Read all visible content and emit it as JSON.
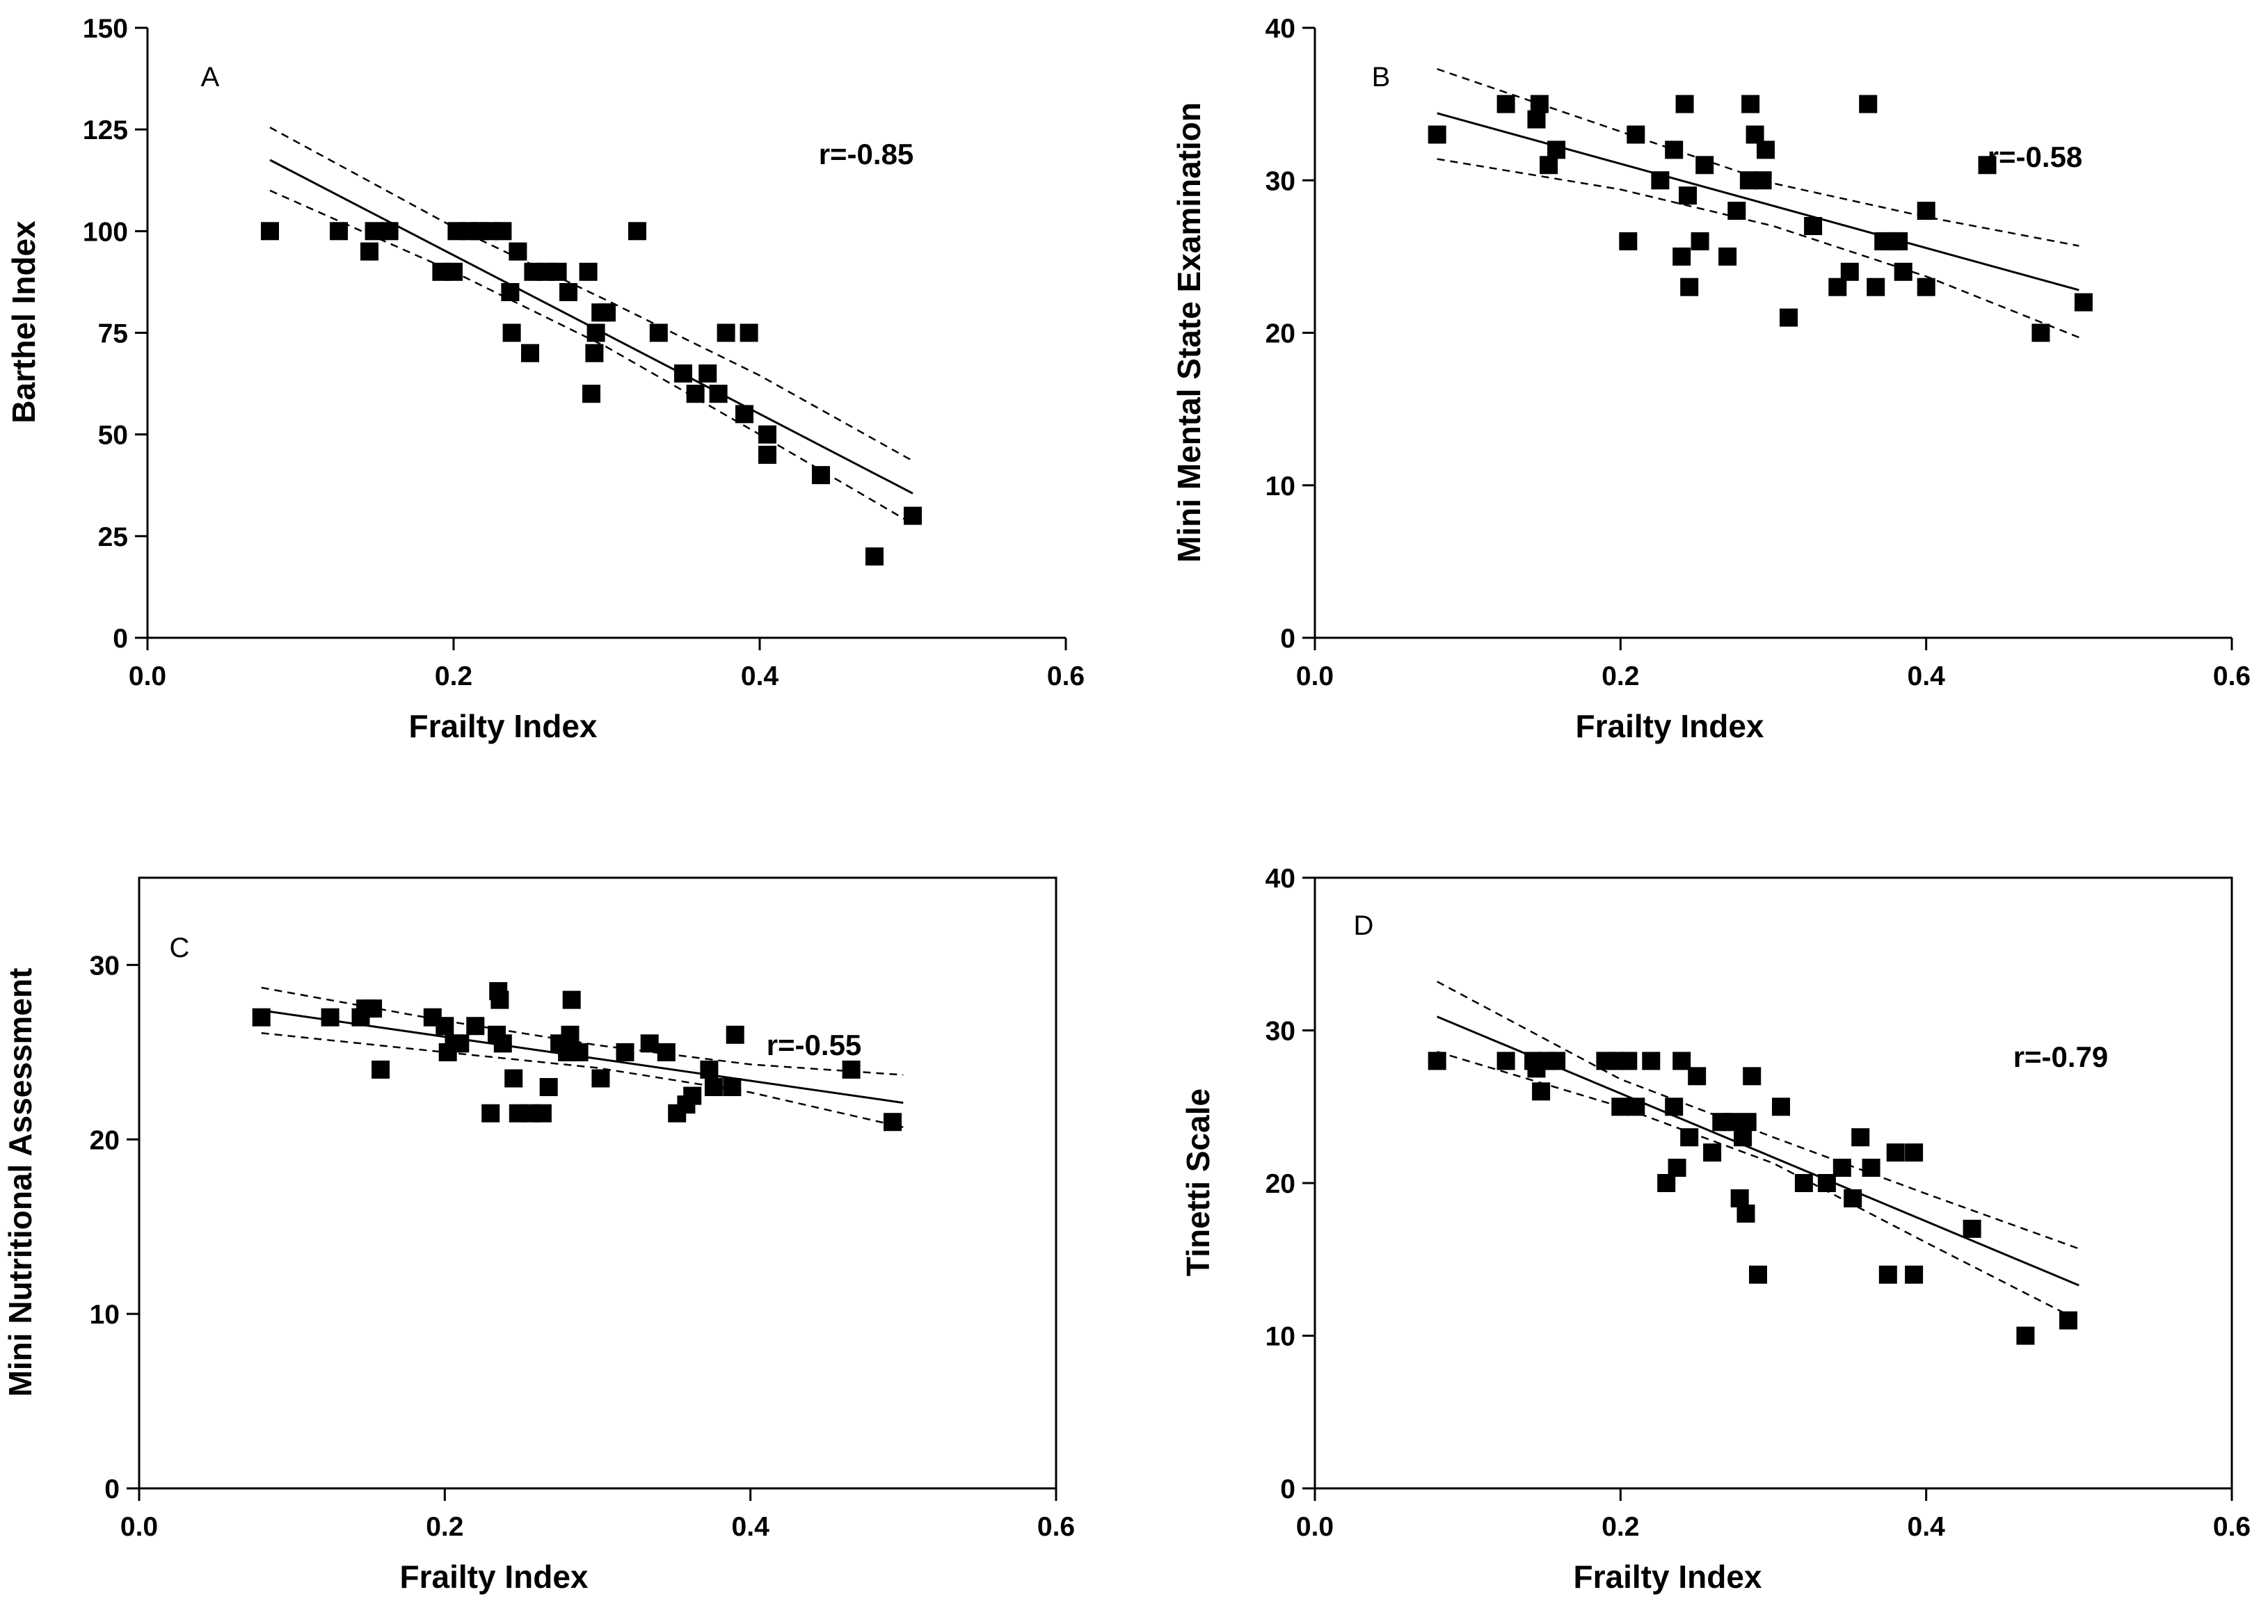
{
  "colors": {
    "ink": "#000000",
    "background": "#ffffff"
  },
  "chart_data": [
    {
      "type": "scatter",
      "panel": "A",
      "correlation_label": "r=-0.85",
      "xlabel": "Frailty Index",
      "ylabel": "Barthel Index",
      "xlim": [
        0,
        0.6
      ],
      "ylim": [
        0,
        150
      ],
      "xticks": [
        "0.0",
        "0.2",
        "0.4",
        "0.6"
      ],
      "yticks": [
        "0",
        "25",
        "50",
        "75",
        "100",
        "125",
        "150"
      ],
      "frame": "axes",
      "points": [
        [
          0.08,
          100
        ],
        [
          0.125,
          100
        ],
        [
          0.145,
          95
        ],
        [
          0.148,
          100
        ],
        [
          0.158,
          100
        ],
        [
          0.192,
          90
        ],
        [
          0.2,
          90
        ],
        [
          0.202,
          100
        ],
        [
          0.21,
          100
        ],
        [
          0.217,
          100
        ],
        [
          0.224,
          100
        ],
        [
          0.232,
          100
        ],
        [
          0.237,
          85
        ],
        [
          0.238,
          75
        ],
        [
          0.242,
          95
        ],
        [
          0.25,
          70
        ],
        [
          0.252,
          90
        ],
        [
          0.26,
          90
        ],
        [
          0.268,
          90
        ],
        [
          0.275,
          85
        ],
        [
          0.288,
          90
        ],
        [
          0.29,
          60
        ],
        [
          0.292,
          70
        ],
        [
          0.293,
          75
        ],
        [
          0.296,
          80
        ],
        [
          0.3,
          80
        ],
        [
          0.32,
          100
        ],
        [
          0.334,
          75
        ],
        [
          0.35,
          65
        ],
        [
          0.358,
          60
        ],
        [
          0.366,
          65
        ],
        [
          0.373,
          60
        ],
        [
          0.378,
          75
        ],
        [
          0.39,
          55
        ],
        [
          0.393,
          75
        ],
        [
          0.405,
          50
        ],
        [
          0.405,
          45
        ],
        [
          0.44,
          40
        ],
        [
          0.475,
          20
        ],
        [
          0.5,
          30
        ]
      ],
      "fit": {
        "x": [
          0.08,
          0.5
        ],
        "y": [
          117.5,
          35.5
        ]
      },
      "ci_upper": {
        "x": [
          0.08,
          0.2,
          0.3,
          0.4,
          0.5
        ],
        "y": [
          125.5,
          101,
          83,
          64.5,
          43.5
        ]
      },
      "ci_lower": {
        "x": [
          0.08,
          0.2,
          0.3,
          0.4,
          0.5
        ],
        "y": [
          110,
          90,
          71.5,
          50,
          28
        ]
      }
    },
    {
      "type": "scatter",
      "panel": "B",
      "correlation_label": "r=-0.58",
      "xlabel": "Frailty Index",
      "ylabel": "Mini Mental State Examination",
      "xlim": [
        0,
        0.6
      ],
      "ylim": [
        0,
        40
      ],
      "xticks": [
        "0.0",
        "0.2",
        "0.4",
        "0.6"
      ],
      "yticks": [
        "0",
        "10",
        "20",
        "30",
        "40"
      ],
      "frame": "axes",
      "points": [
        [
          0.08,
          33
        ],
        [
          0.125,
          35
        ],
        [
          0.145,
          34
        ],
        [
          0.147,
          35
        ],
        [
          0.153,
          31
        ],
        [
          0.158,
          32
        ],
        [
          0.205,
          26
        ],
        [
          0.21,
          33
        ],
        [
          0.226,
          30
        ],
        [
          0.235,
          32
        ],
        [
          0.24,
          25
        ],
        [
          0.242,
          35
        ],
        [
          0.244,
          29
        ],
        [
          0.245,
          23
        ],
        [
          0.252,
          26
        ],
        [
          0.255,
          31
        ],
        [
          0.27,
          25
        ],
        [
          0.276,
          28
        ],
        [
          0.284,
          30
        ],
        [
          0.285,
          35
        ],
        [
          0.288,
          33
        ],
        [
          0.293,
          30
        ],
        [
          0.295,
          32
        ],
        [
          0.31,
          21
        ],
        [
          0.326,
          27
        ],
        [
          0.342,
          23
        ],
        [
          0.35,
          24
        ],
        [
          0.362,
          35
        ],
        [
          0.367,
          23
        ],
        [
          0.372,
          26
        ],
        [
          0.378,
          26
        ],
        [
          0.382,
          26
        ],
        [
          0.385,
          24
        ],
        [
          0.4,
          28
        ],
        [
          0.4,
          23
        ],
        [
          0.44,
          31
        ],
        [
          0.475,
          20
        ],
        [
          0.503,
          22
        ]
      ],
      "fit": {
        "x": [
          0.08,
          0.5
        ],
        "y": [
          34.4,
          22.8
        ]
      },
      "ci_upper": {
        "x": [
          0.08,
          0.2,
          0.3,
          0.4,
          0.5
        ],
        "y": [
          37.3,
          33.2,
          29.8,
          27.6,
          25.7
        ]
      },
      "ci_lower": {
        "x": [
          0.08,
          0.2,
          0.3,
          0.4,
          0.5
        ],
        "y": [
          31.4,
          29.4,
          27.0,
          23.7,
          19.7
        ]
      }
    },
    {
      "type": "scatter",
      "panel": "C",
      "correlation_label": "r=-0.55",
      "xlabel": "Frailty Index",
      "ylabel": "Mini Nutritional Assessment",
      "xlim": [
        0,
        0.6
      ],
      "ylim": [
        0,
        35
      ],
      "xticks": [
        "0.0",
        "0.2",
        "0.4",
        "0.6"
      ],
      "yticks": [
        "0",
        "10",
        "20",
        "30"
      ],
      "frame": "box",
      "points": [
        [
          0.08,
          27
        ],
        [
          0.125,
          27
        ],
        [
          0.145,
          27
        ],
        [
          0.148,
          27.5
        ],
        [
          0.153,
          27.5
        ],
        [
          0.158,
          24
        ],
        [
          0.192,
          27
        ],
        [
          0.2,
          26.5
        ],
        [
          0.202,
          25
        ],
        [
          0.206,
          25.5
        ],
        [
          0.21,
          25.5
        ],
        [
          0.22,
          26.5
        ],
        [
          0.23,
          21.5
        ],
        [
          0.234,
          26
        ],
        [
          0.235,
          28.5
        ],
        [
          0.236,
          28
        ],
        [
          0.238,
          25.5
        ],
        [
          0.245,
          23.5
        ],
        [
          0.248,
          21.5
        ],
        [
          0.256,
          21.5
        ],
        [
          0.264,
          21.5
        ],
        [
          0.268,
          23
        ],
        [
          0.275,
          25.5
        ],
        [
          0.28,
          25
        ],
        [
          0.282,
          26
        ],
        [
          0.283,
          28
        ],
        [
          0.288,
          25
        ],
        [
          0.302,
          23.5
        ],
        [
          0.318,
          25
        ],
        [
          0.334,
          25.5
        ],
        [
          0.345,
          25
        ],
        [
          0.352,
          21.5
        ],
        [
          0.358,
          22
        ],
        [
          0.362,
          22.5
        ],
        [
          0.373,
          24
        ],
        [
          0.376,
          23
        ],
        [
          0.388,
          23
        ],
        [
          0.39,
          26
        ],
        [
          0.466,
          24
        ],
        [
          0.493,
          21
        ]
      ],
      "fit": {
        "x": [
          0.08,
          0.5
        ],
        "y": [
          27.4,
          22.1
        ]
      },
      "ci_upper": {
        "x": [
          0.08,
          0.2,
          0.3,
          0.4,
          0.5
        ],
        "y": [
          28.7,
          26.8,
          25.4,
          24.3,
          23.7
        ]
      },
      "ci_lower": {
        "x": [
          0.08,
          0.2,
          0.3,
          0.4,
          0.5
        ],
        "y": [
          26.1,
          25.0,
          24.1,
          22.7,
          20.7
        ]
      }
    },
    {
      "type": "scatter",
      "panel": "D",
      "correlation_label": "r=-0.79",
      "xlabel": "Frailty Index",
      "ylabel": "Tinetti Scale",
      "xlim": [
        0,
        0.6
      ],
      "ylim": [
        0,
        40
      ],
      "xticks": [
        "0.0",
        "0.2",
        "0.4",
        "0.6"
      ],
      "yticks": [
        "0",
        "10",
        "20",
        "30",
        "40"
      ],
      "frame": "box",
      "points": [
        [
          0.08,
          28
        ],
        [
          0.125,
          28
        ],
        [
          0.143,
          28
        ],
        [
          0.145,
          27.5
        ],
        [
          0.148,
          26
        ],
        [
          0.152,
          28
        ],
        [
          0.158,
          28
        ],
        [
          0.19,
          28
        ],
        [
          0.197,
          28
        ],
        [
          0.2,
          25
        ],
        [
          0.205,
          28
        ],
        [
          0.21,
          25
        ],
        [
          0.22,
          28
        ],
        [
          0.23,
          20
        ],
        [
          0.235,
          25
        ],
        [
          0.237,
          21
        ],
        [
          0.24,
          28
        ],
        [
          0.245,
          23
        ],
        [
          0.25,
          27
        ],
        [
          0.26,
          22
        ],
        [
          0.266,
          24
        ],
        [
          0.272,
          24
        ],
        [
          0.278,
          19
        ],
        [
          0.28,
          23
        ],
        [
          0.282,
          18
        ],
        [
          0.283,
          24
        ],
        [
          0.286,
          27
        ],
        [
          0.29,
          14
        ],
        [
          0.305,
          25
        ],
        [
          0.32,
          20
        ],
        [
          0.335,
          20
        ],
        [
          0.345,
          21
        ],
        [
          0.352,
          19
        ],
        [
          0.357,
          23
        ],
        [
          0.364,
          21
        ],
        [
          0.375,
          14
        ],
        [
          0.38,
          22
        ],
        [
          0.392,
          22
        ],
        [
          0.392,
          14
        ],
        [
          0.43,
          17
        ],
        [
          0.465,
          10
        ],
        [
          0.493,
          11
        ]
      ],
      "fit": {
        "x": [
          0.08,
          0.5
        ],
        "y": [
          30.9,
          13.3
        ]
      },
      "ci_upper": {
        "x": [
          0.08,
          0.2,
          0.3,
          0.4,
          0.5
        ],
        "y": [
          33.2,
          26.8,
          23.0,
          19.3,
          15.7
        ]
      },
      "ci_lower": {
        "x": [
          0.08,
          0.2,
          0.3,
          0.4,
          0.5
        ],
        "y": [
          28.6,
          25.0,
          21.3,
          16.1,
          11.0
        ]
      }
    }
  ]
}
